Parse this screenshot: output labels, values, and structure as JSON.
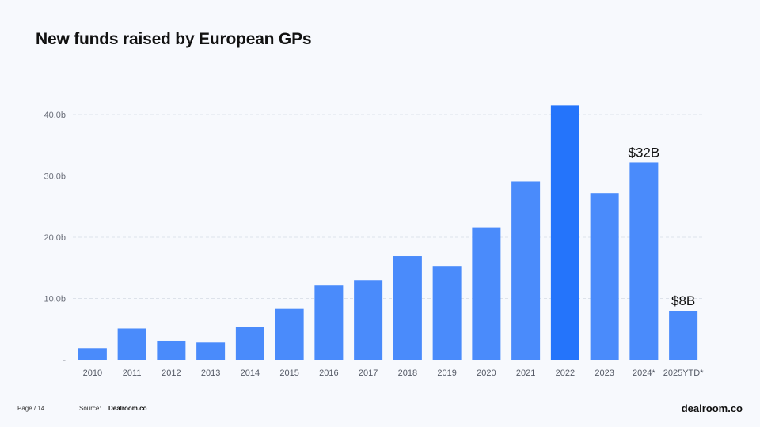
{
  "chart_data": {
    "type": "bar",
    "title": "New funds raised by European GPs",
    "categories": [
      "2010",
      "2011",
      "2012",
      "2013",
      "2014",
      "2015",
      "2016",
      "2017",
      "2018",
      "2019",
      "2020",
      "2021",
      "2022",
      "2023",
      "2024*",
      "2025YTD*"
    ],
    "values": [
      1.9,
      5.1,
      3.1,
      2.8,
      5.4,
      8.3,
      12.1,
      13.0,
      16.9,
      15.2,
      21.6,
      29.1,
      41.5,
      27.2,
      32.2,
      8.0
    ],
    "ylim": [
      0,
      45
    ],
    "yticks": [
      0,
      10,
      20,
      30,
      40
    ],
    "yticklabels": [
      "-",
      "10.0b",
      "20.0b",
      "30.0b",
      "40.0b"
    ],
    "grid": true,
    "colors": {
      "bar": "#4a8bfb",
      "highlight": "#2474fb"
    },
    "highlight_index": 12,
    "annotations": [
      {
        "index": 14,
        "text": "$32B"
      },
      {
        "index": 15,
        "text": "$8B"
      }
    ]
  },
  "footer": {
    "page": "Page / 14",
    "source_label": "Source:",
    "source": "Dealroom.co",
    "brand": "dealroom.co"
  }
}
